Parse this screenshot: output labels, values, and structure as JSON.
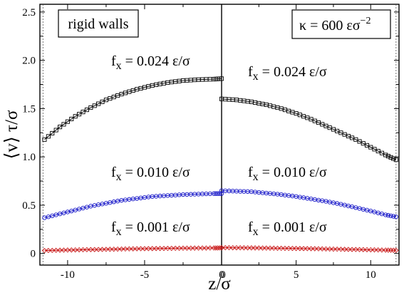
{
  "chart_data": [
    {
      "type": "scatter",
      "panel": "left",
      "label_box": "rigid walls",
      "xlim": [
        -11.8,
        0
      ],
      "ylim": [
        -0.12,
        2.58
      ],
      "x_ticks": [
        -10,
        -5,
        0
      ],
      "x_tick_labels": [
        "-10",
        "-5",
        "0"
      ],
      "wall_line_x": -11.6,
      "series": [
        {
          "annotation": "fₓ = 0.024 ε/σ",
          "marker": "square",
          "color": "#000000",
          "x": [
            -11.5,
            -10.5,
            -9.5,
            -8.5,
            -7.5,
            -6.5,
            -5.5,
            -4.5,
            -3.5,
            -2.5,
            -1.5,
            -0.5,
            0
          ],
          "y": [
            1.18,
            1.31,
            1.42,
            1.51,
            1.59,
            1.65,
            1.7,
            1.74,
            1.77,
            1.79,
            1.8,
            1.805,
            1.81
          ]
        },
        {
          "annotation": "fₓ = 0.010 ε/σ",
          "marker": "circle",
          "color": "#1515c8",
          "x": [
            -11.5,
            -10.5,
            -9.5,
            -8.5,
            -7.5,
            -6.5,
            -5.5,
            -4.5,
            -3.5,
            -2.5,
            -1.5,
            -0.5,
            0
          ],
          "y": [
            0.37,
            0.41,
            0.45,
            0.49,
            0.52,
            0.55,
            0.57,
            0.59,
            0.6,
            0.61,
            0.615,
            0.62,
            0.62
          ]
        },
        {
          "annotation": "fₓ = 0.001 ε/σ",
          "marker": "diamond",
          "color": "#c81515",
          "x": [
            -11.5,
            -10.5,
            -9.5,
            -8.5,
            -7.5,
            -6.5,
            -5.5,
            -4.5,
            -3.5,
            -2.5,
            -1.5,
            -0.5,
            0
          ],
          "y": [
            0.03,
            0.034,
            0.037,
            0.04,
            0.043,
            0.046,
            0.049,
            0.051,
            0.053,
            0.055,
            0.056,
            0.057,
            0.058
          ]
        }
      ]
    },
    {
      "type": "scatter",
      "panel": "right",
      "label_box": "κ = 600 εσ",
      "label_box_sup": "−2",
      "xlim": [
        0,
        11.9
      ],
      "ylim": [
        -0.12,
        2.58
      ],
      "x_ticks": [
        0,
        5,
        10
      ],
      "x_tick_labels": [
        "0",
        "5",
        "10"
      ],
      "wall_line_x": 11.7,
      "series": [
        {
          "annotation": "fₓ = 0.024 ε/σ",
          "marker": "square",
          "color": "#000000",
          "x": [
            0,
            1,
            2,
            3,
            4,
            5,
            6,
            7,
            8,
            9,
            10,
            11,
            11.7
          ],
          "y": [
            1.6,
            1.59,
            1.57,
            1.54,
            1.5,
            1.45,
            1.39,
            1.32,
            1.25,
            1.18,
            1.1,
            1.02,
            0.97
          ]
        },
        {
          "annotation": "fₓ = 0.010 ε/σ",
          "marker": "circle",
          "color": "#1515c8",
          "x": [
            0,
            1,
            2,
            3,
            4,
            5,
            6,
            7,
            8,
            9,
            10,
            11,
            11.7
          ],
          "y": [
            0.65,
            0.645,
            0.64,
            0.625,
            0.61,
            0.59,
            0.565,
            0.54,
            0.51,
            0.475,
            0.44,
            0.4,
            0.38
          ]
        },
        {
          "annotation": "fₓ = 0.001 ε/σ",
          "marker": "diamond",
          "color": "#c81515",
          "x": [
            0,
            1,
            2,
            3,
            4,
            5,
            6,
            7,
            8,
            9,
            10,
            11,
            11.7
          ],
          "y": [
            0.06,
            0.059,
            0.058,
            0.056,
            0.054,
            0.052,
            0.05,
            0.047,
            0.044,
            0.041,
            0.038,
            0.035,
            0.033
          ]
        }
      ]
    }
  ],
  "y_ticks": [
    0,
    0.5,
    1.0,
    1.5,
    2.0,
    2.5
  ],
  "y_tick_labels": [
    "0",
    "0.5",
    "1.0",
    "1.5",
    "2.0",
    "2.5"
  ],
  "ylabel": "⟨v⟩ τ/σ",
  "xlabel": "z/σ"
}
